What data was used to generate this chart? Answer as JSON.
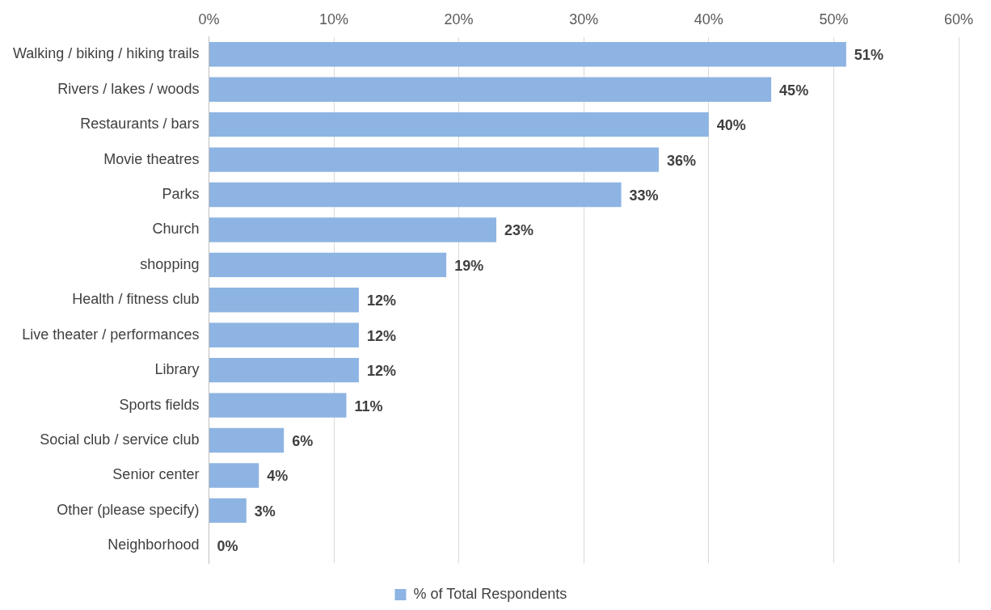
{
  "chart_data": {
    "type": "bar",
    "orientation": "horizontal",
    "categories": [
      "Walking / biking / hiking trails",
      "Rivers / lakes / woods",
      "Restaurants / bars",
      "Movie theatres",
      "Parks",
      "Church",
      "shopping",
      "Health / fitness club",
      "Live theater / performances",
      "Library",
      "Sports fields",
      "Social club / service club",
      "Senior center",
      "Other (please specify)",
      "Neighborhood"
    ],
    "series": [
      {
        "name": "% of Total Respondents",
        "color": "#8db4e2",
        "values": [
          51,
          45,
          40,
          36,
          33,
          23,
          19,
          12,
          12,
          12,
          11,
          6,
          4,
          3,
          0
        ],
        "value_labels": [
          "51%",
          "45%",
          "40%",
          "36%",
          "33%",
          "23%",
          "19%",
          "12%",
          "12%",
          "12%",
          "11%",
          "6%",
          "4%",
          "3%",
          "0%"
        ]
      }
    ],
    "xlim": [
      0,
      60
    ],
    "xticks": [
      {
        "value": 0,
        "label": "0%"
      },
      {
        "value": 10,
        "label": "10%"
      },
      {
        "value": 20,
        "label": "20%"
      },
      {
        "value": 30,
        "label": "30%"
      },
      {
        "value": 40,
        "label": "40%"
      },
      {
        "value": 50,
        "label": "50%"
      },
      {
        "value": 60,
        "label": "60%"
      }
    ],
    "grid": "x",
    "legend": "bottom"
  }
}
